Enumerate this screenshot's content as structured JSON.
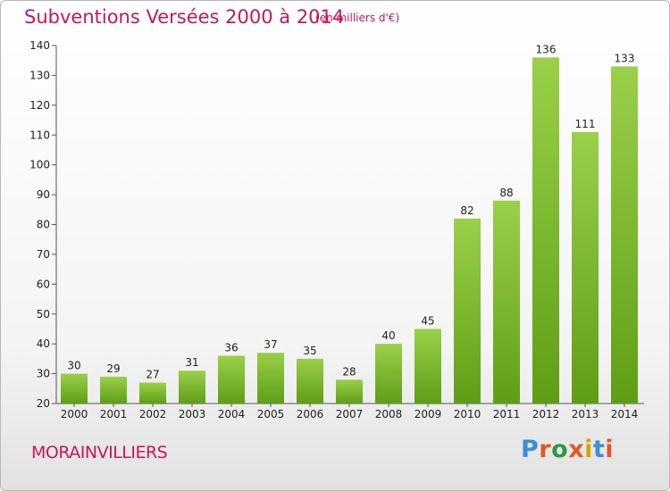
{
  "header": {
    "title": "Subventions Versées 2000 à 2014",
    "subtitle": "(en milliers d'€)"
  },
  "footer": {
    "city": "MORAINVILLIERS",
    "logo": "Proxiti",
    "logo_colors": [
      "#3a8fd6",
      "#e0582a",
      "#2c9a44",
      "#e0582a",
      "#d6a400",
      "#3a8fd6",
      "#e0582a"
    ]
  },
  "colors": {
    "bar_top": "#9ad04a",
    "bar_bottom": "#5e9e16",
    "accent": "#c2185b"
  },
  "chart_data": {
    "type": "bar",
    "title": "Subventions Versées 2000 à 2014",
    "subtitle": "(en milliers d'€)",
    "categories": [
      "2000",
      "2001",
      "2002",
      "2003",
      "2004",
      "2005",
      "2006",
      "2007",
      "2008",
      "2009",
      "2010",
      "2011",
      "2012",
      "2013",
      "2014"
    ],
    "values": [
      30,
      29,
      27,
      31,
      36,
      37,
      35,
      28,
      40,
      45,
      82,
      88,
      136,
      111,
      133
    ],
    "ylim": [
      20,
      140
    ],
    "yticks": [
      20,
      30,
      40,
      50,
      60,
      70,
      80,
      90,
      100,
      110,
      120,
      130,
      140
    ],
    "grid": false,
    "xlabel": "",
    "ylabel": ""
  }
}
